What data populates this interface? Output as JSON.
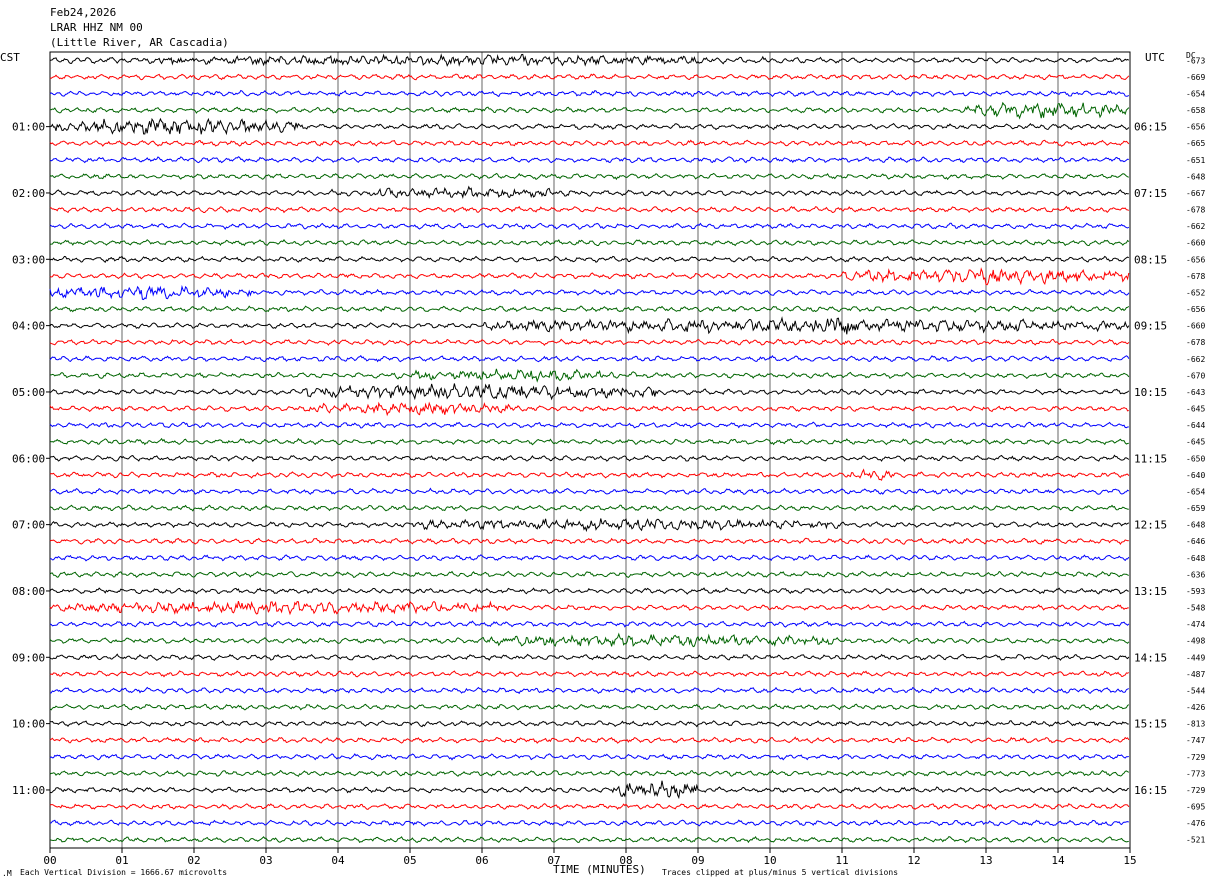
{
  "header": {
    "date": "Feb24,2026",
    "station": "LRAR HHZ NM 00",
    "location": "(Little River, AR Cascadia)"
  },
  "axis": {
    "left_timezone": "CST",
    "right_timezone": "UTC",
    "dc_label": "DC",
    "xlabel": "TIME (MINUTES)",
    "x_ticks": [
      "00",
      "01",
      "02",
      "03",
      "04",
      "05",
      "06",
      "07",
      "08",
      "09",
      "10",
      "11",
      "12",
      "13",
      "14",
      "15"
    ]
  },
  "footer": {
    "scale_note": "Each Vertical Division = 1666.67 microvolts",
    "clip_note": "Traces clipped at plus/minus 5 vertical divisions"
  },
  "colors": {
    "trace_cycle": [
      "#000000",
      "#ff0000",
      "#0000ff",
      "#006400"
    ],
    "grid": "#000000",
    "background": "#ffffff"
  },
  "chart_data": {
    "type": "line",
    "title": "",
    "xlim": [
      0,
      15
    ],
    "rows_per_hour": 4,
    "minutes_per_row": 15,
    "left_hour_labels": [
      "01:00",
      "02:00",
      "03:00",
      "04:00",
      "05:00",
      "06:00",
      "07:00",
      "08:00",
      "09:00",
      "10:00",
      "11:00"
    ],
    "right_hour_labels": [
      "06:15",
      "07:15",
      "08:15",
      "09:15",
      "10:15",
      "11:15",
      "12:15",
      "13:15",
      "14:15",
      "15:15",
      "16:15"
    ],
    "dc_offsets": [
      -673,
      -669,
      -654,
      -658,
      -656,
      -665,
      -651,
      -648,
      -667,
      -678,
      -662,
      -660,
      -656,
      -678,
      -652,
      -656,
      -660,
      -678,
      -662,
      -670,
      -643,
      -645,
      -644,
      -645,
      -650,
      -640,
      -654,
      -659,
      -648,
      -646,
      -648,
      -636,
      -593,
      -548,
      -474,
      -498,
      -449,
      -487,
      -544,
      -426,
      -813,
      -747,
      -729,
      -773,
      -729,
      -695,
      -476,
      -521
    ],
    "trace_bursts": [
      {
        "row": 0,
        "from": 0,
        "to": 10.5,
        "amp": 1.6
      },
      {
        "row": 3,
        "from": 12.7,
        "to": 15,
        "amp": 2.2
      },
      {
        "row": 4,
        "from": 0,
        "to": 3.5,
        "amp": 2.4
      },
      {
        "row": 8,
        "from": 3.5,
        "to": 8,
        "amp": 1.5
      },
      {
        "row": 13,
        "from": 11,
        "to": 15,
        "amp": 2.2
      },
      {
        "row": 14,
        "from": 0,
        "to": 2.8,
        "amp": 2.0
      },
      {
        "row": 16,
        "from": 6,
        "to": 15,
        "amp": 2.0
      },
      {
        "row": 16,
        "from": 10.8,
        "to": 11.3,
        "amp": 3.2
      },
      {
        "row": 19,
        "from": 4.5,
        "to": 8.5,
        "amp": 1.6
      },
      {
        "row": 20,
        "from": 3.5,
        "to": 8.5,
        "amp": 2.2
      },
      {
        "row": 21,
        "from": 3.5,
        "to": 6.5,
        "amp": 1.8
      },
      {
        "row": 25,
        "from": 11,
        "to": 11.8,
        "amp": 1.6
      },
      {
        "row": 28,
        "from": 5,
        "to": 11,
        "amp": 1.8
      },
      {
        "row": 33,
        "from": 0,
        "to": 6.5,
        "amp": 1.8
      },
      {
        "row": 35,
        "from": 6,
        "to": 11,
        "amp": 1.8
      },
      {
        "row": 44,
        "from": 7.8,
        "to": 9,
        "amp": 2.4
      }
    ]
  }
}
